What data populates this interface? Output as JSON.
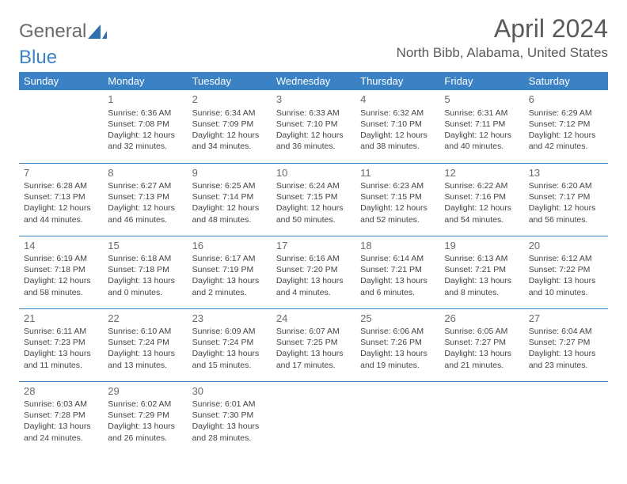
{
  "brand": {
    "part1": "General",
    "part2": "Blue"
  },
  "title": "April 2024",
  "location": "North Bibb, Alabama, United States",
  "colors": {
    "header_bg": "#3b82c4",
    "header_text": "#ffffff",
    "rule": "#3b82c4",
    "text": "#444444",
    "title_text": "#5a5a5a"
  },
  "day_headers": [
    "Sunday",
    "Monday",
    "Tuesday",
    "Wednesday",
    "Thursday",
    "Friday",
    "Saturday"
  ],
  "weeks": [
    [
      null,
      {
        "n": "1",
        "sunrise": "6:36 AM",
        "sunset": "7:08 PM",
        "daylight": "12 hours and 32 minutes."
      },
      {
        "n": "2",
        "sunrise": "6:34 AM",
        "sunset": "7:09 PM",
        "daylight": "12 hours and 34 minutes."
      },
      {
        "n": "3",
        "sunrise": "6:33 AM",
        "sunset": "7:10 PM",
        "daylight": "12 hours and 36 minutes."
      },
      {
        "n": "4",
        "sunrise": "6:32 AM",
        "sunset": "7:10 PM",
        "daylight": "12 hours and 38 minutes."
      },
      {
        "n": "5",
        "sunrise": "6:31 AM",
        "sunset": "7:11 PM",
        "daylight": "12 hours and 40 minutes."
      },
      {
        "n": "6",
        "sunrise": "6:29 AM",
        "sunset": "7:12 PM",
        "daylight": "12 hours and 42 minutes."
      }
    ],
    [
      {
        "n": "7",
        "sunrise": "6:28 AM",
        "sunset": "7:13 PM",
        "daylight": "12 hours and 44 minutes."
      },
      {
        "n": "8",
        "sunrise": "6:27 AM",
        "sunset": "7:13 PM",
        "daylight": "12 hours and 46 minutes."
      },
      {
        "n": "9",
        "sunrise": "6:25 AM",
        "sunset": "7:14 PM",
        "daylight": "12 hours and 48 minutes."
      },
      {
        "n": "10",
        "sunrise": "6:24 AM",
        "sunset": "7:15 PM",
        "daylight": "12 hours and 50 minutes."
      },
      {
        "n": "11",
        "sunrise": "6:23 AM",
        "sunset": "7:15 PM",
        "daylight": "12 hours and 52 minutes."
      },
      {
        "n": "12",
        "sunrise": "6:22 AM",
        "sunset": "7:16 PM",
        "daylight": "12 hours and 54 minutes."
      },
      {
        "n": "13",
        "sunrise": "6:20 AM",
        "sunset": "7:17 PM",
        "daylight": "12 hours and 56 minutes."
      }
    ],
    [
      {
        "n": "14",
        "sunrise": "6:19 AM",
        "sunset": "7:18 PM",
        "daylight": "12 hours and 58 minutes."
      },
      {
        "n": "15",
        "sunrise": "6:18 AM",
        "sunset": "7:18 PM",
        "daylight": "13 hours and 0 minutes."
      },
      {
        "n": "16",
        "sunrise": "6:17 AM",
        "sunset": "7:19 PM",
        "daylight": "13 hours and 2 minutes."
      },
      {
        "n": "17",
        "sunrise": "6:16 AM",
        "sunset": "7:20 PM",
        "daylight": "13 hours and 4 minutes."
      },
      {
        "n": "18",
        "sunrise": "6:14 AM",
        "sunset": "7:21 PM",
        "daylight": "13 hours and 6 minutes."
      },
      {
        "n": "19",
        "sunrise": "6:13 AM",
        "sunset": "7:21 PM",
        "daylight": "13 hours and 8 minutes."
      },
      {
        "n": "20",
        "sunrise": "6:12 AM",
        "sunset": "7:22 PM",
        "daylight": "13 hours and 10 minutes."
      }
    ],
    [
      {
        "n": "21",
        "sunrise": "6:11 AM",
        "sunset": "7:23 PM",
        "daylight": "13 hours and 11 minutes."
      },
      {
        "n": "22",
        "sunrise": "6:10 AM",
        "sunset": "7:24 PM",
        "daylight": "13 hours and 13 minutes."
      },
      {
        "n": "23",
        "sunrise": "6:09 AM",
        "sunset": "7:24 PM",
        "daylight": "13 hours and 15 minutes."
      },
      {
        "n": "24",
        "sunrise": "6:07 AM",
        "sunset": "7:25 PM",
        "daylight": "13 hours and 17 minutes."
      },
      {
        "n": "25",
        "sunrise": "6:06 AM",
        "sunset": "7:26 PM",
        "daylight": "13 hours and 19 minutes."
      },
      {
        "n": "26",
        "sunrise": "6:05 AM",
        "sunset": "7:27 PM",
        "daylight": "13 hours and 21 minutes."
      },
      {
        "n": "27",
        "sunrise": "6:04 AM",
        "sunset": "7:27 PM",
        "daylight": "13 hours and 23 minutes."
      }
    ],
    [
      {
        "n": "28",
        "sunrise": "6:03 AM",
        "sunset": "7:28 PM",
        "daylight": "13 hours and 24 minutes."
      },
      {
        "n": "29",
        "sunrise": "6:02 AM",
        "sunset": "7:29 PM",
        "daylight": "13 hours and 26 minutes."
      },
      {
        "n": "30",
        "sunrise": "6:01 AM",
        "sunset": "7:30 PM",
        "daylight": "13 hours and 28 minutes."
      },
      null,
      null,
      null,
      null
    ]
  ],
  "labels": {
    "sunrise": "Sunrise: ",
    "sunset": "Sunset: ",
    "daylight": "Daylight: "
  }
}
